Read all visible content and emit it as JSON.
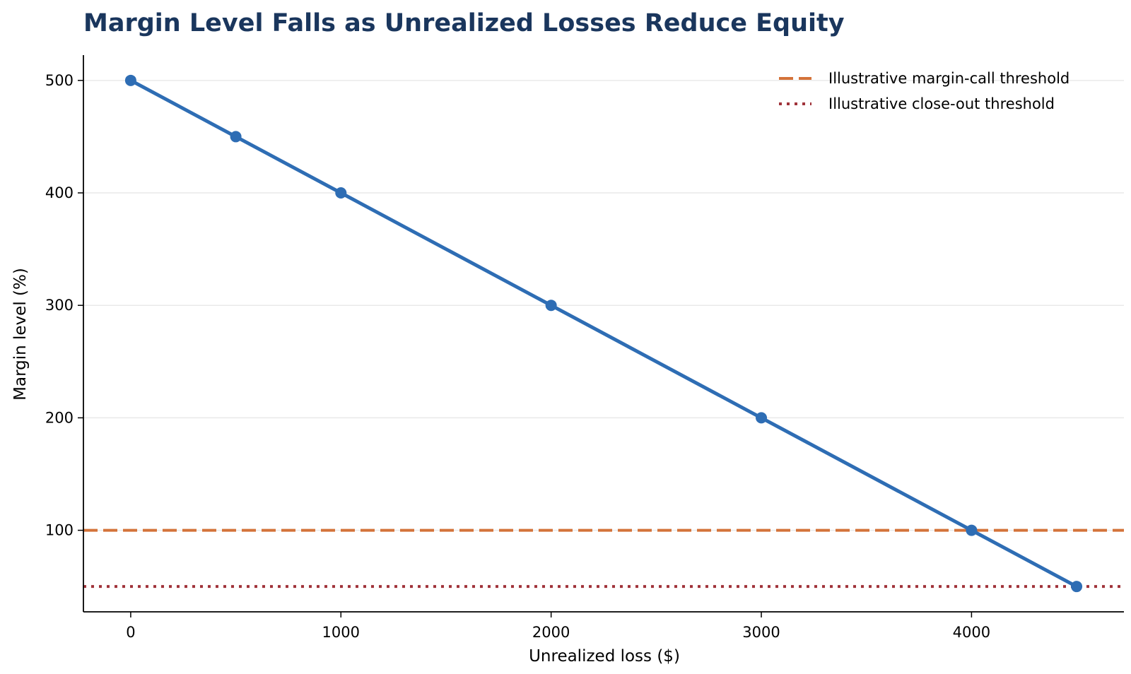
{
  "chart_data": {
    "type": "line",
    "title": "Margin Level Falls as Unrealized Losses Reduce Equity",
    "xlabel": "Unrealized loss ($)",
    "ylabel": "Margin level (%)",
    "xlim": [
      -225,
      4725
    ],
    "ylim": [
      27.5,
      522.5
    ],
    "xticks": [
      0,
      1000,
      2000,
      3000,
      4000
    ],
    "yticks": [
      100,
      200,
      300,
      400,
      500
    ],
    "grid": "horizontal",
    "legend_position": "top-right",
    "series": [
      {
        "x": [
          0,
          500,
          1000,
          2000,
          3000,
          4000,
          4500
        ],
        "y": [
          500,
          450,
          400,
          300,
          200,
          100,
          50
        ],
        "color": "#2e6db4",
        "marker": "circle"
      }
    ],
    "reference_lines": [
      {
        "name": "Illustrative margin-call threshold",
        "y": 100,
        "color": "#d4733a",
        "style": "dashed"
      },
      {
        "name": "Illustrative close-out threshold",
        "y": 50,
        "color": "#a0333a",
        "style": "dotted"
      }
    ]
  }
}
